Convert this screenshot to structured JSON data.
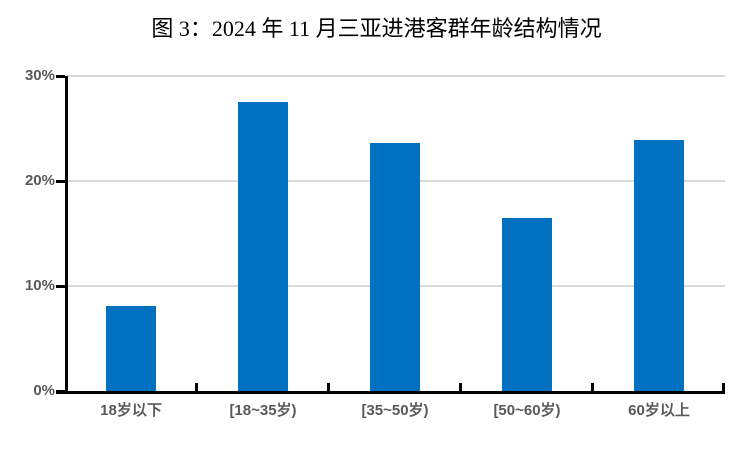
{
  "figure": {
    "background": "#FFFFFF"
  },
  "chart_data": {
    "type": "bar",
    "title": "图 3：2024 年 11 月三亚进港客群年龄结构情况",
    "categories": [
      "18岁以下",
      "[18~35岁)",
      "[35~50岁)",
      "[50~60岁)",
      "60岁以上"
    ],
    "values": [
      8.1,
      27.5,
      23.6,
      16.5,
      23.9
    ],
    "value_unit": "%",
    "xlabel": "",
    "ylabel": "",
    "ylim": [
      0,
      30
    ],
    "yticks": [
      0,
      10,
      20,
      30
    ],
    "ytick_labels": [
      "0%",
      "10%",
      "20%",
      "30%"
    ],
    "grid": true,
    "legend_position": "none",
    "colors": {
      "bar": "#0070C0",
      "axis": "#000000",
      "gridline": "#D9D9D9",
      "tick_label": "#595959",
      "title": "#000000"
    }
  }
}
